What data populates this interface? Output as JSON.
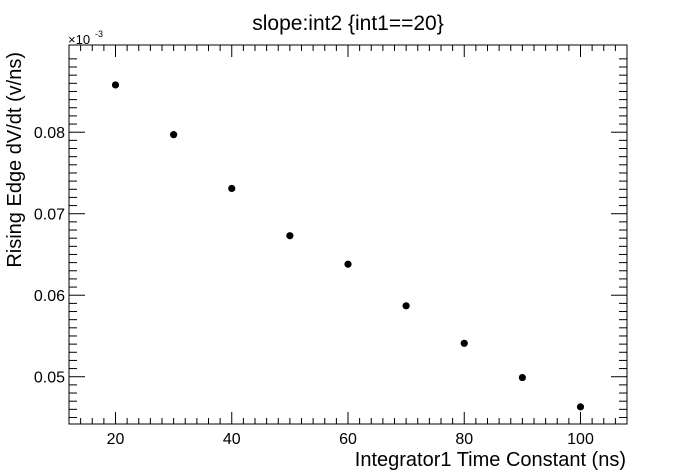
{
  "chart_data": {
    "type": "scatter",
    "title": "slope:int2 {int1==20}",
    "xlabel": "Integrator1 Time Constant (ns)",
    "ylabel": "Rising Edge dV/dt (v/ns)",
    "y_multiplier": {
      "base": "×10",
      "exponent": "-3"
    },
    "xlim": [
      12,
      108
    ],
    "ylim": [
      0.0442,
      0.0907
    ],
    "x_ticks": [
      20,
      40,
      60,
      80,
      100
    ],
    "x_tick_labels": [
      "20",
      "40",
      "60",
      "80",
      "100"
    ],
    "y_ticks": [
      0.05,
      0.06,
      0.07,
      0.08
    ],
    "y_tick_labels": [
      "0.05",
      "0.06",
      "0.07",
      "0.08"
    ],
    "grid": false,
    "series": [
      {
        "name": "slope:int2",
        "x": [
          20,
          30,
          40,
          50,
          60,
          70,
          80,
          90,
          100
        ],
        "y": [
          0.0858,
          0.0797,
          0.0731,
          0.0673,
          0.0638,
          0.0587,
          0.0541,
          0.0499,
          0.0463
        ]
      }
    ]
  }
}
